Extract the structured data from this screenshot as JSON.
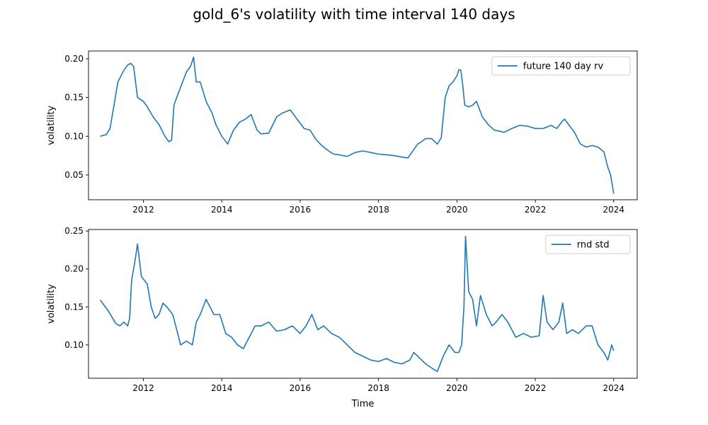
{
  "title": "gold_6's volatility with time interval 140 days",
  "chart_data": [
    {
      "type": "line",
      "xlabel": "",
      "ylabel": "volatility",
      "xlim": [
        2010.6,
        2024.6
      ],
      "ylim": [
        0.018,
        0.21
      ],
      "xticks": [
        2012,
        2014,
        2016,
        2018,
        2020,
        2022,
        2024
      ],
      "yticks": [
        0.05,
        0.1,
        0.15,
        0.2
      ],
      "ytick_labels": [
        "0.05",
        "0.10",
        "0.15",
        "0.20"
      ],
      "legend_position": "top-right",
      "grid": false,
      "series": [
        {
          "name": "future 140 day rv",
          "color": "#1f77b4",
          "x": [
            2010.9,
            2011.05,
            2011.15,
            2011.25,
            2011.35,
            2011.5,
            2011.6,
            2011.68,
            2011.75,
            2011.85,
            2012.0,
            2012.1,
            2012.25,
            2012.4,
            2012.55,
            2012.65,
            2012.72,
            2012.78,
            2012.85,
            2013.0,
            2013.1,
            2013.2,
            2013.25,
            2013.28,
            2013.35,
            2013.45,
            2013.6,
            2013.75,
            2013.85,
            2014.0,
            2014.15,
            2014.3,
            2014.45,
            2014.6,
            2014.75,
            2014.9,
            2015.0,
            2015.2,
            2015.4,
            2015.55,
            2015.75,
            2015.95,
            2016.1,
            2016.25,
            2016.4,
            2016.55,
            2016.7,
            2016.85,
            2017.0,
            2017.2,
            2017.4,
            2017.6,
            2017.8,
            2018.0,
            2018.2,
            2018.4,
            2018.6,
            2018.75,
            2018.9,
            2019.0,
            2019.1,
            2019.2,
            2019.35,
            2019.5,
            2019.6,
            2019.7,
            2019.8,
            2019.9,
            2020.0,
            2020.05,
            2020.1,
            2020.15,
            2020.2,
            2020.3,
            2020.4,
            2020.5,
            2020.65,
            2020.8,
            2020.95,
            2021.05,
            2021.2,
            2021.4,
            2021.6,
            2021.8,
            2022.0,
            2022.2,
            2022.4,
            2022.55,
            2022.7,
            2022.75,
            2022.85,
            2023.0,
            2023.15,
            2023.3,
            2023.45,
            2023.6,
            2023.75,
            2023.85,
            2023.92,
            2024.0
          ],
          "values": [
            0.1,
            0.102,
            0.11,
            0.14,
            0.17,
            0.185,
            0.192,
            0.194,
            0.19,
            0.15,
            0.145,
            0.138,
            0.125,
            0.115,
            0.1,
            0.093,
            0.095,
            0.14,
            0.15,
            0.17,
            0.183,
            0.19,
            0.197,
            0.202,
            0.17,
            0.17,
            0.145,
            0.13,
            0.115,
            0.1,
            0.09,
            0.108,
            0.118,
            0.122,
            0.128,
            0.108,
            0.103,
            0.104,
            0.125,
            0.13,
            0.134,
            0.12,
            0.11,
            0.108,
            0.096,
            0.088,
            0.082,
            0.077,
            0.076,
            0.074,
            0.079,
            0.081,
            0.079,
            0.077,
            0.076,
            0.075,
            0.073,
            0.072,
            0.083,
            0.09,
            0.093,
            0.097,
            0.097,
            0.09,
            0.098,
            0.15,
            0.165,
            0.17,
            0.178,
            0.186,
            0.185,
            0.165,
            0.14,
            0.138,
            0.14,
            0.145,
            0.125,
            0.115,
            0.108,
            0.107,
            0.105,
            0.11,
            0.114,
            0.113,
            0.11,
            0.11,
            0.114,
            0.11,
            0.12,
            0.122,
            0.115,
            0.105,
            0.09,
            0.086,
            0.088,
            0.086,
            0.08,
            0.06,
            0.05,
            0.026
          ]
        }
      ]
    },
    {
      "type": "line",
      "xlabel": "Time",
      "ylabel": "volatility",
      "xlim": [
        2010.6,
        2024.6
      ],
      "ylim": [
        0.056,
        0.252
      ],
      "xticks": [
        2012,
        2014,
        2016,
        2018,
        2020,
        2022,
        2024
      ],
      "yticks": [
        0.1,
        0.15,
        0.2,
        0.25
      ],
      "ytick_labels": [
        "0.10",
        "0.15",
        "0.20",
        "0.25"
      ],
      "legend_position": "top-right",
      "grid": false,
      "series": [
        {
          "name": "rnd std",
          "color": "#1f77b4",
          "x": [
            2010.9,
            2011.1,
            2011.3,
            2011.4,
            2011.5,
            2011.6,
            2011.65,
            2011.7,
            2011.75,
            2011.8,
            2011.85,
            2011.95,
            2012.1,
            2012.2,
            2012.3,
            2012.4,
            2012.5,
            2012.6,
            2012.75,
            2012.85,
            2012.95,
            2013.1,
            2013.25,
            2013.35,
            2013.45,
            2013.6,
            2013.8,
            2013.95,
            2014.1,
            2014.25,
            2014.4,
            2014.55,
            2014.7,
            2014.85,
            2015.0,
            2015.2,
            2015.4,
            2015.6,
            2015.8,
            2016.0,
            2016.15,
            2016.3,
            2016.45,
            2016.6,
            2016.8,
            2017.0,
            2017.2,
            2017.4,
            2017.6,
            2017.8,
            2018.0,
            2018.2,
            2018.4,
            2018.6,
            2018.8,
            2018.9,
            2019.0,
            2019.2,
            2019.4,
            2019.5,
            2019.65,
            2019.8,
            2019.95,
            2020.05,
            2020.12,
            2020.18,
            2020.22,
            2020.3,
            2020.4,
            2020.5,
            2020.6,
            2020.75,
            2020.9,
            2021.0,
            2021.15,
            2021.3,
            2021.5,
            2021.7,
            2021.9,
            2022.1,
            2022.2,
            2022.3,
            2022.45,
            2022.6,
            2022.7,
            2022.8,
            2022.95,
            2023.1,
            2023.3,
            2023.45,
            2023.6,
            2023.75,
            2023.85,
            2023.95,
            2024.0
          ],
          "values": [
            0.159,
            0.145,
            0.128,
            0.125,
            0.13,
            0.125,
            0.135,
            0.185,
            0.2,
            0.215,
            0.233,
            0.19,
            0.18,
            0.15,
            0.135,
            0.14,
            0.155,
            0.15,
            0.14,
            0.12,
            0.1,
            0.105,
            0.1,
            0.13,
            0.14,
            0.16,
            0.14,
            0.14,
            0.115,
            0.11,
            0.1,
            0.095,
            0.11,
            0.125,
            0.125,
            0.13,
            0.118,
            0.12,
            0.125,
            0.115,
            0.125,
            0.14,
            0.12,
            0.125,
            0.115,
            0.11,
            0.1,
            0.09,
            0.085,
            0.08,
            0.078,
            0.082,
            0.077,
            0.075,
            0.08,
            0.09,
            0.085,
            0.075,
            0.068,
            0.065,
            0.085,
            0.1,
            0.09,
            0.09,
            0.1,
            0.15,
            0.243,
            0.17,
            0.16,
            0.125,
            0.165,
            0.14,
            0.125,
            0.13,
            0.14,
            0.13,
            0.11,
            0.115,
            0.11,
            0.112,
            0.165,
            0.13,
            0.12,
            0.13,
            0.155,
            0.115,
            0.12,
            0.115,
            0.125,
            0.125,
            0.1,
            0.09,
            0.08,
            0.1,
            0.092
          ]
        }
      ]
    }
  ]
}
